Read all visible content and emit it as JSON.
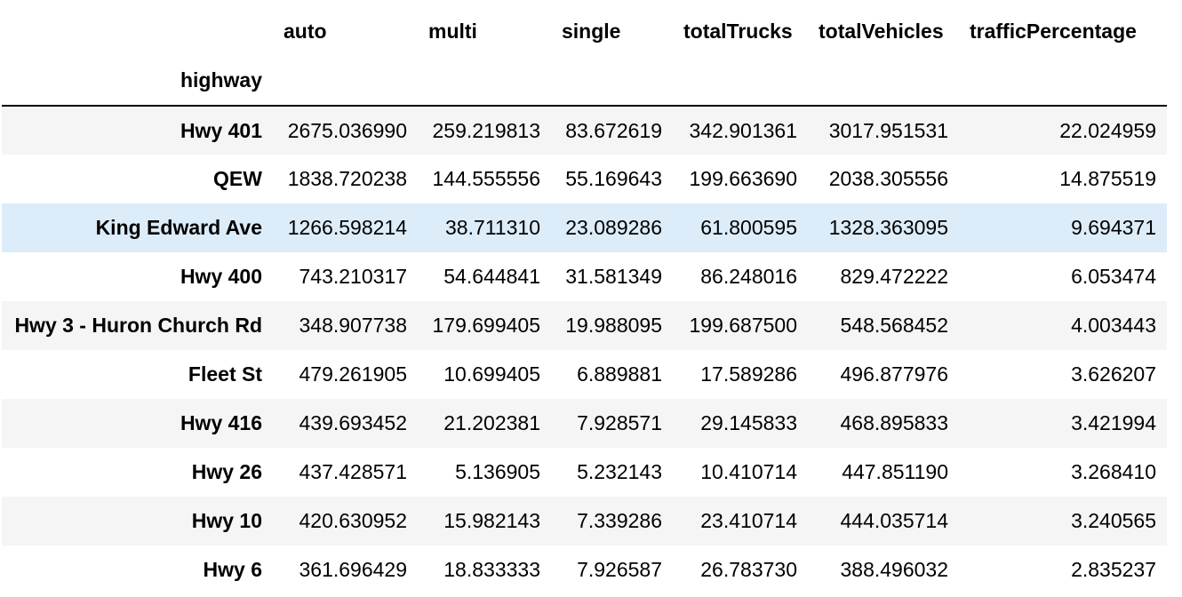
{
  "table": {
    "columns": [
      "auto",
      "multi",
      "single",
      "totalTrucks",
      "totalVehicles",
      "trafficPercentage"
    ],
    "index_name": "highway",
    "rows": [
      {
        "highway": "Hwy 401",
        "values": [
          "2675.036990",
          "259.219813",
          "83.672619",
          "342.901361",
          "3017.951531",
          "22.024959"
        ]
      },
      {
        "highway": "QEW",
        "values": [
          "1838.720238",
          "144.555556",
          "55.169643",
          "199.663690",
          "2038.305556",
          "14.875519"
        ]
      },
      {
        "highway": "King Edward Ave",
        "values": [
          "1266.598214",
          "38.711310",
          "23.089286",
          "61.800595",
          "1328.363095",
          "9.694371"
        ]
      },
      {
        "highway": "Hwy 400",
        "values": [
          "743.210317",
          "54.644841",
          "31.581349",
          "86.248016",
          "829.472222",
          "6.053474"
        ]
      },
      {
        "highway": "Hwy 3 - Huron Church Rd",
        "values": [
          "348.907738",
          "179.699405",
          "19.988095",
          "199.687500",
          "548.568452",
          "4.003443"
        ]
      },
      {
        "highway": "Fleet St",
        "values": [
          "479.261905",
          "10.699405",
          "6.889881",
          "17.589286",
          "496.877976",
          "3.626207"
        ]
      },
      {
        "highway": "Hwy 416",
        "values": [
          "439.693452",
          "21.202381",
          "7.928571",
          "29.145833",
          "468.895833",
          "3.421994"
        ]
      },
      {
        "highway": "Hwy 26",
        "values": [
          "437.428571",
          "5.136905",
          "5.232143",
          "10.410714",
          "447.851190",
          "3.268410"
        ]
      },
      {
        "highway": "Hwy 10",
        "values": [
          "420.630952",
          "15.982143",
          "7.339286",
          "23.410714",
          "444.035714",
          "3.240565"
        ]
      },
      {
        "highway": "Hwy 6",
        "values": [
          "361.696429",
          "18.833333",
          "7.926587",
          "26.783730",
          "388.496032",
          "2.835237"
        ]
      }
    ],
    "highlighted_row": "King Edward Ave",
    "colors": {
      "striped_row": "#f5f5f5",
      "highlight_row": "#dcecf9",
      "header_rule": "#000000"
    }
  }
}
